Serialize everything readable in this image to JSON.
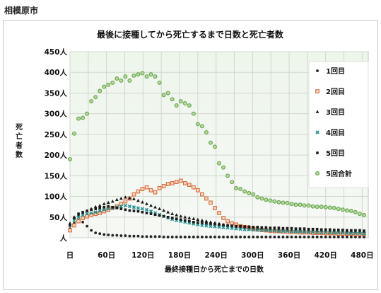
{
  "header": {
    "city": "相模原市"
  },
  "chart_data": {
    "type": "scatter",
    "title": "最後に接種してから死亡するまで日数と死亡者数",
    "xlabel": "最終接種日から死亡までの日数",
    "ylabel": "死亡者数",
    "xlim": [
      0,
      490
    ],
    "ylim": [
      0,
      450
    ],
    "x_ticks": [
      0,
      60,
      120,
      180,
      240,
      300,
      360,
      420,
      480
    ],
    "x_tick_labels": [
      "日",
      "60日",
      "120日",
      "180日",
      "240日",
      "300日",
      "360日",
      "420日",
      "480日"
    ],
    "y_ticks": [
      0,
      50,
      100,
      150,
      200,
      250,
      300,
      350,
      400,
      450
    ],
    "y_tick_labels": [
      "人",
      "50人",
      "100人",
      "150人",
      "200人",
      "250人",
      "300人",
      "350人",
      "400人",
      "450人"
    ],
    "grid": true,
    "legend_position": "top-right",
    "series": [
      {
        "name": "1回目",
        "marker": "circle",
        "color": "#222222",
        "x": [
          0,
          7,
          14,
          21,
          28,
          35,
          42,
          49,
          56,
          63,
          70,
          77,
          84,
          91,
          98,
          105,
          112,
          119,
          126,
          133,
          140,
          147,
          154,
          161,
          168,
          175,
          182,
          189,
          196,
          203,
          210,
          217,
          224,
          231,
          238,
          245,
          252,
          259,
          266,
          273,
          280,
          287,
          294,
          301,
          308,
          315,
          322,
          329,
          336,
          343,
          350,
          357,
          364,
          371,
          378,
          385,
          392,
          399,
          406,
          413,
          420,
          427,
          434,
          441,
          448,
          455,
          462,
          469,
          476,
          483
        ],
        "y": [
          22,
          35,
          43,
          38,
          28,
          18,
          12,
          10,
          8,
          7,
          6,
          6,
          5,
          5,
          4,
          4,
          4,
          3,
          3,
          3,
          3,
          3,
          2,
          2,
          2,
          2,
          2,
          2,
          2,
          2,
          2,
          2,
          2,
          2,
          2,
          2,
          2,
          2,
          2,
          2,
          2,
          2,
          2,
          2,
          2,
          2,
          2,
          2,
          2,
          2,
          2,
          2,
          2,
          2,
          2,
          2,
          2,
          2,
          2,
          2,
          2,
          2,
          2,
          2,
          2,
          2,
          2,
          2,
          2,
          2
        ]
      },
      {
        "name": "2回目",
        "marker": "square",
        "color": "#d96c3a",
        "x": [
          0,
          7,
          14,
          21,
          28,
          35,
          42,
          49,
          56,
          63,
          70,
          77,
          84,
          91,
          98,
          105,
          112,
          119,
          126,
          133,
          140,
          147,
          154,
          161,
          168,
          175,
          182,
          189,
          196,
          203,
          210,
          217,
          224,
          231,
          238,
          245,
          252,
          259,
          266,
          273,
          280,
          287,
          294,
          301,
          308,
          315,
          322,
          329,
          336,
          343,
          350,
          357,
          364,
          371,
          378,
          385,
          392,
          399,
          406,
          413,
          420,
          427,
          434,
          441,
          448,
          455,
          462,
          469,
          476,
          483
        ],
        "y": [
          18,
          30,
          40,
          48,
          52,
          55,
          58,
          60,
          64,
          68,
          72,
          76,
          82,
          88,
          95,
          105,
          112,
          118,
          122,
          115,
          110,
          120,
          125,
          130,
          132,
          135,
          138,
          132,
          128,
          122,
          115,
          105,
          95,
          85,
          72,
          60,
          48,
          40,
          35,
          32,
          28,
          26,
          24,
          22,
          20,
          19,
          18,
          17,
          16,
          16,
          15,
          15,
          14,
          14,
          13,
          13,
          13,
          12,
          12,
          12,
          11,
          11,
          11,
          10,
          10,
          10,
          10,
          9,
          9,
          9
        ]
      },
      {
        "name": "3回目",
        "marker": "triangle",
        "color": "#1a1a1a",
        "x": [
          0,
          7,
          14,
          21,
          28,
          35,
          42,
          49,
          56,
          63,
          70,
          77,
          84,
          91,
          98,
          105,
          112,
          119,
          126,
          133,
          140,
          147,
          154,
          161,
          168,
          175,
          182,
          189,
          196,
          203,
          210,
          217,
          224,
          231,
          238,
          245,
          252,
          259,
          266,
          273,
          280,
          287,
          294,
          301,
          308,
          315,
          322,
          329,
          336,
          343,
          350,
          357,
          364,
          371,
          378,
          385,
          392,
          399,
          406,
          413,
          420,
          427,
          434,
          441,
          448,
          455,
          462,
          469,
          476,
          483
        ],
        "y": [
          35,
          50,
          55,
          60,
          65,
          70,
          75,
          78,
          82,
          85,
          88,
          92,
          95,
          98,
          96,
          94,
          90,
          86,
          82,
          78,
          74,
          70,
          66,
          62,
          58,
          55,
          52,
          50,
          48,
          46,
          44,
          42,
          40,
          38,
          36,
          34,
          32,
          30,
          28,
          27,
          26,
          25,
          24,
          23,
          22,
          22,
          21,
          21,
          20,
          20,
          20,
          19,
          19,
          19,
          18,
          18,
          18,
          18,
          17,
          17,
          17,
          17,
          16,
          16,
          16,
          16,
          15,
          15,
          15,
          15
        ]
      },
      {
        "name": "4回目",
        "marker": "x",
        "color": "#1f8f8f",
        "x": [
          0,
          7,
          14,
          21,
          28,
          35,
          42,
          49,
          56,
          63,
          70,
          77,
          84,
          91,
          98,
          105,
          112,
          119,
          126,
          133,
          140,
          147,
          154,
          161,
          168,
          175,
          182,
          189,
          196,
          203,
          210,
          217,
          224,
          231,
          238,
          245,
          252,
          259,
          266,
          273,
          280,
          287,
          294,
          301,
          308,
          315,
          322,
          329,
          336,
          343,
          350,
          357,
          364,
          371,
          378,
          385,
          392,
          399,
          406,
          413,
          420,
          427,
          434,
          441,
          448,
          455,
          462,
          469,
          476,
          483
        ],
        "y": [
          30,
          42,
          50,
          55,
          58,
          60,
          62,
          65,
          68,
          70,
          72,
          74,
          76,
          78,
          76,
          74,
          72,
          70,
          68,
          64,
          60,
          56,
          52,
          48,
          45,
          42,
          40,
          38,
          36,
          34,
          32,
          30,
          29,
          28,
          27,
          26,
          25,
          24,
          23,
          22,
          21,
          20,
          20,
          19,
          19,
          18,
          18,
          17,
          17,
          16,
          16,
          16,
          15,
          15,
          15,
          14,
          14,
          14,
          13,
          13,
          13,
          12,
          12,
          12,
          12,
          11,
          11,
          11,
          11,
          10
        ]
      },
      {
        "name": "5回目",
        "marker": "square-small",
        "color": "#1a1a1a",
        "x": [
          0,
          7,
          14,
          21,
          28,
          35,
          42,
          49,
          56,
          63,
          70,
          77,
          84,
          91,
          98,
          105,
          112,
          119,
          126,
          133,
          140,
          147,
          154,
          161,
          168,
          175,
          182,
          189,
          196,
          203,
          210,
          217,
          224,
          231,
          238,
          245,
          252,
          259,
          266,
          273,
          280,
          287,
          294,
          301,
          308,
          315,
          322,
          329,
          336,
          343,
          350,
          357,
          364,
          371,
          378,
          385,
          392,
          399,
          406,
          413,
          420,
          427,
          434,
          441,
          448,
          455,
          462,
          469,
          476,
          483
        ],
        "y": [
          30,
          48,
          58,
          62,
          65,
          68,
          70,
          72,
          74,
          76,
          74,
          72,
          70,
          68,
          66,
          65,
          64,
          62,
          60,
          58,
          56,
          54,
          52,
          50,
          48,
          46,
          44,
          42,
          40,
          38,
          37,
          36,
          35,
          34,
          33,
          32,
          31,
          30,
          29,
          28,
          28,
          27,
          27,
          26,
          26,
          25,
          25,
          24,
          24,
          24,
          23,
          23,
          23,
          22,
          22,
          22,
          21,
          21,
          21,
          20,
          20,
          20,
          19,
          19,
          19,
          18,
          18,
          18,
          18,
          17
        ]
      },
      {
        "name": "5回合計",
        "marker": "circle-open",
        "color": "#6aa84f",
        "x": [
          0,
          7,
          14,
          21,
          28,
          35,
          42,
          49,
          56,
          63,
          70,
          77,
          84,
          91,
          98,
          105,
          112,
          119,
          126,
          133,
          140,
          147,
          154,
          161,
          168,
          175,
          182,
          189,
          196,
          203,
          210,
          217,
          224,
          231,
          238,
          245,
          252,
          259,
          266,
          273,
          280,
          287,
          294,
          301,
          308,
          315,
          322,
          329,
          336,
          343,
          350,
          357,
          364,
          371,
          378,
          385,
          392,
          399,
          406,
          413,
          420,
          427,
          434,
          441,
          448,
          455,
          462,
          469,
          476,
          483
        ],
        "y": [
          190,
          252,
          288,
          290,
          300,
          330,
          340,
          355,
          365,
          370,
          375,
          385,
          380,
          390,
          380,
          392,
          395,
          398,
          390,
          395,
          390,
          375,
          345,
          350,
          335,
          320,
          330,
          325,
          320,
          300,
          275,
          270,
          255,
          230,
          220,
          180,
          170,
          150,
          135,
          120,
          118,
          112,
          108,
          105,
          98,
          95,
          92,
          90,
          88,
          86,
          85,
          84,
          82,
          80,
          80,
          78,
          78,
          76,
          75,
          75,
          74,
          73,
          72,
          70,
          68,
          66,
          65,
          62,
          58,
          55
        ]
      }
    ]
  }
}
